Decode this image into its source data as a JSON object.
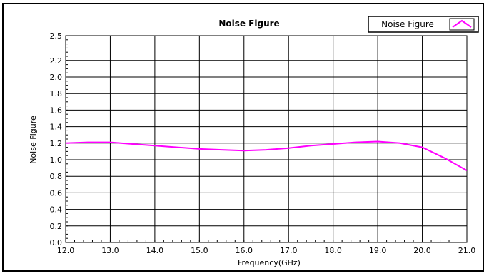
{
  "chart_data": {
    "type": "line",
    "title": "Noise Figure",
    "xlabel": "Frequency(GHz)",
    "ylabel": "Noise Figure",
    "xlim": [
      12.0,
      21.0
    ],
    "ylim": [
      0.0,
      2.5
    ],
    "x_ticks": [
      "12.0",
      "13.0",
      "14.0",
      "15.0",
      "16.0",
      "17.0",
      "18.0",
      "19.0",
      "20.0",
      "21.0"
    ],
    "y_ticks": [
      "0.0",
      "0.2",
      "0.4",
      "0.6",
      "0.8",
      "1.0",
      "1.2",
      "1.4",
      "1.6",
      "1.8",
      "2.0",
      "2.2",
      "2.5"
    ],
    "grid": true,
    "legend_position": "top-right",
    "series": [
      {
        "name": "Noise Figure",
        "color": "#ff00ff",
        "x": [
          12.0,
          12.5,
          13.0,
          13.5,
          14.0,
          14.5,
          15.0,
          15.5,
          16.0,
          16.5,
          17.0,
          17.5,
          18.0,
          18.5,
          19.0,
          19.5,
          20.0,
          20.5,
          21.0
        ],
        "y": [
          1.2,
          1.21,
          1.21,
          1.19,
          1.17,
          1.15,
          1.13,
          1.12,
          1.11,
          1.12,
          1.14,
          1.17,
          1.19,
          1.21,
          1.22,
          1.2,
          1.15,
          1.02,
          0.87
        ]
      }
    ]
  }
}
